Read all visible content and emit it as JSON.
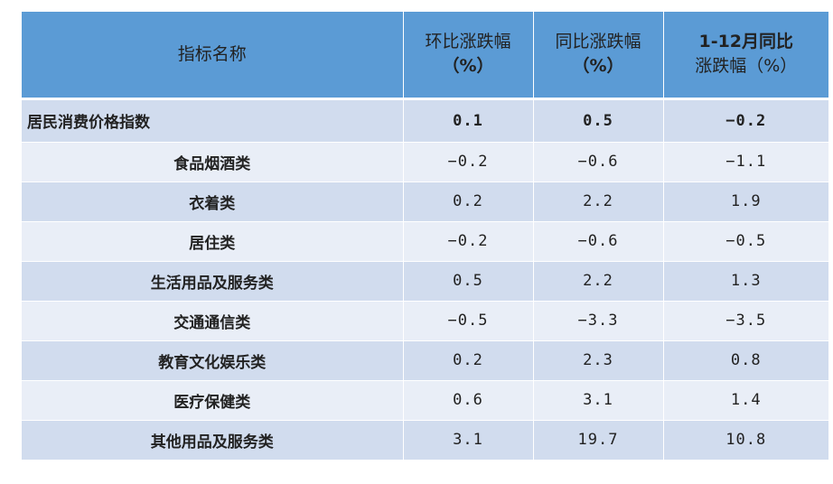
{
  "table": {
    "headers": {
      "name": "指标名称",
      "mom_line1": "环比涨跌幅",
      "mom_line2": "（%）",
      "yoy_line1": "同比涨跌幅",
      "yoy_line2": "（%）",
      "ytd_line1": "1-12月同比",
      "ytd_line2": "涨跌幅（%）"
    },
    "rows": [
      {
        "name": "居民消费价格指数",
        "mom": "0.1",
        "yoy": "0.5",
        "ytd": "−0.2"
      },
      {
        "name": "食品烟酒类",
        "mom": "−0.2",
        "yoy": "−0.6",
        "ytd": "−1.1"
      },
      {
        "name": "衣着类",
        "mom": "0.2",
        "yoy": "2.2",
        "ytd": "1.9"
      },
      {
        "name": "居住类",
        "mom": "−0.2",
        "yoy": "−0.6",
        "ytd": "−0.5"
      },
      {
        "name": "生活用品及服务类",
        "mom": "0.5",
        "yoy": "2.2",
        "ytd": "1.3"
      },
      {
        "name": "交通通信类",
        "mom": "−0.5",
        "yoy": "−3.3",
        "ytd": "−3.5"
      },
      {
        "name": "教育文化娱乐类",
        "mom": "0.2",
        "yoy": "2.3",
        "ytd": "0.8"
      },
      {
        "name": "医疗保健类",
        "mom": "0.6",
        "yoy": "3.1",
        "ytd": "1.4"
      },
      {
        "name": "其他用品及服务类",
        "mom": "3.1",
        "yoy": "19.7",
        "ytd": "10.8"
      }
    ]
  },
  "colors": {
    "header_bg": "#5b9bd5",
    "row_dark": "#d1dcee",
    "row_light": "#e9eef7"
  }
}
